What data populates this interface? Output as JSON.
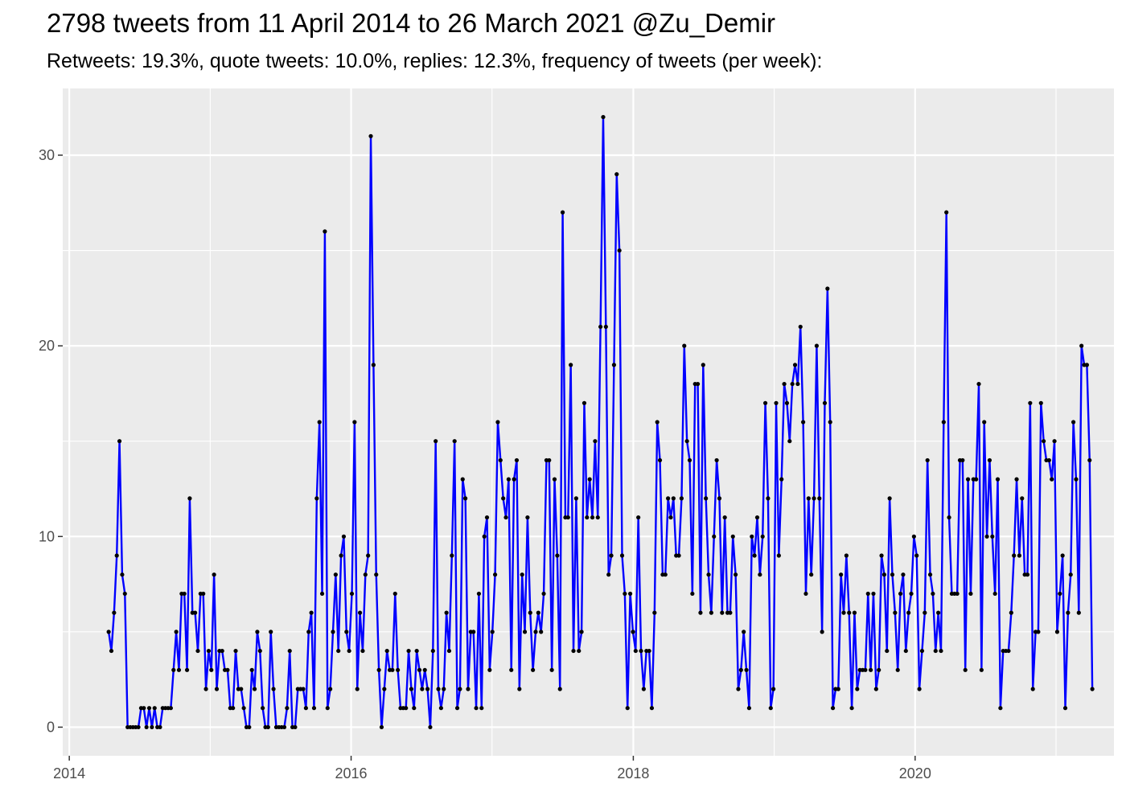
{
  "chart_data": {
    "type": "line",
    "title": "2798 tweets from 11 April 2014 to 26 March 2021 @Zu_Demir",
    "subtitle": "Retweets: 19.3%, quote tweets: 10.0%, replies: 12.3%, frequency of tweets (per week):",
    "xlabel": "",
    "ylabel": "",
    "x_range": [
      "2013-12-15",
      "2021-05-30"
    ],
    "ylim": [
      -1.5,
      33.5
    ],
    "x_ticks": [
      {
        "date": "2014-01-01",
        "label": "2014"
      },
      {
        "date": "2016-01-01",
        "label": "2016"
      },
      {
        "date": "2018-01-01",
        "label": "2018"
      },
      {
        "date": "2020-01-01",
        "label": "2020"
      }
    ],
    "y_ticks": [
      0,
      10,
      20,
      30
    ],
    "grid": true,
    "colors": {
      "panel": "#EBEBEB",
      "grid": "#FFFFFF",
      "line": "#0000FF",
      "points": "#000000"
    },
    "series": [
      {
        "start": "2014-04-13",
        "values": [
          5,
          4,
          6,
          9,
          15,
          8,
          7,
          0,
          0,
          0,
          0,
          0,
          1,
          1,
          0,
          1,
          0,
          1,
          0,
          0,
          1,
          1,
          1,
          1,
          3,
          5,
          3,
          7,
          7,
          3,
          12,
          6,
          6,
          4,
          7,
          7,
          2,
          4,
          3,
          8,
          2,
          4,
          4,
          3,
          3,
          1,
          1,
          4,
          2,
          2,
          1,
          0,
          0,
          3,
          2,
          5,
          4,
          1,
          0,
          0,
          5,
          2,
          0,
          0,
          0,
          0,
          1,
          4,
          0,
          0,
          2,
          2,
          2,
          1,
          5,
          6,
          1,
          12,
          16,
          7,
          26,
          1,
          2,
          5,
          8,
          4,
          9,
          10,
          5,
          4,
          7,
          16,
          2,
          6,
          4,
          8,
          9,
          31,
          19,
          8,
          3,
          0,
          2,
          4,
          3,
          3,
          7,
          3,
          1,
          1,
          1,
          4,
          2,
          1,
          4,
          3,
          2,
          3,
          2,
          0,
          4,
          15,
          2,
          1,
          2,
          6,
          4,
          9,
          15,
          1,
          2,
          13,
          12,
          2,
          5,
          5,
          1,
          7,
          1,
          10,
          11,
          3,
          5,
          8,
          16,
          14,
          12,
          11,
          13,
          3,
          13,
          14,
          2,
          8,
          5,
          11,
          6,
          3,
          5,
          6,
          5,
          7,
          14,
          14,
          3,
          13,
          9,
          2,
          27,
          11,
          11,
          19,
          4,
          12,
          4,
          5,
          17,
          11,
          13,
          11,
          15,
          11,
          21,
          32,
          21,
          8,
          9,
          19,
          29,
          25,
          9,
          7,
          1,
          7,
          5,
          4,
          11,
          4,
          2,
          4,
          4,
          1,
          6,
          16,
          14,
          8,
          8,
          12,
          11,
          12,
          9,
          9,
          12,
          20,
          15,
          14,
          7,
          18,
          18,
          6,
          19,
          12,
          8,
          6,
          10,
          14,
          12,
          6,
          11,
          6,
          6,
          10,
          8,
          2,
          3,
          5,
          3,
          1,
          10,
          9,
          11,
          8,
          10,
          17,
          12,
          1,
          2,
          17,
          9,
          13,
          18,
          17,
          15,
          18,
          19,
          18,
          21,
          16,
          7,
          12,
          8,
          12,
          20,
          12,
          5,
          17,
          23,
          16,
          1,
          2,
          2,
          8,
          6,
          9,
          6,
          1,
          6,
          2,
          3,
          3,
          3,
          7,
          3,
          7,
          2,
          3,
          9,
          8,
          4,
          12,
          8,
          6,
          3,
          7,
          8,
          4,
          6,
          7,
          10,
          9,
          2,
          4,
          6,
          14,
          8,
          7,
          4,
          6,
          4,
          16,
          27,
          11,
          7,
          7,
          7,
          14,
          14,
          3,
          13,
          7,
          13,
          13,
          18,
          3,
          16,
          10,
          14,
          10,
          7,
          13,
          1,
          4,
          4,
          4,
          6,
          9,
          13,
          9,
          12,
          8,
          8,
          17,
          2,
          5,
          5,
          17,
          15,
          14,
          14,
          13,
          15,
          5,
          7,
          9,
          1,
          6,
          8,
          16,
          13,
          6,
          20,
          19,
          19,
          14,
          2
        ]
      }
    ]
  }
}
